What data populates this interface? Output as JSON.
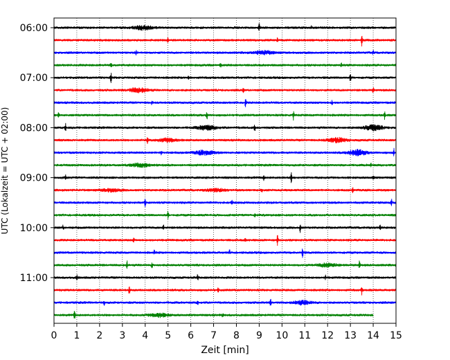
{
  "chart_data": {
    "type": "line",
    "title": "",
    "xlabel": "Zeit  [min]",
    "ylabel": "UTC (Lokalzeit = UTC + 02:00)",
    "xlim": [
      0,
      15
    ],
    "x_ticks": [
      "0",
      "1",
      "2",
      "3",
      "4",
      "5",
      "6",
      "7",
      "8",
      "9",
      "10",
      "11",
      "12",
      "13",
      "14",
      "15"
    ],
    "y_ticks": [
      {
        "label": "06:00",
        "row": 0
      },
      {
        "label": "07:00",
        "row": 4
      },
      {
        "label": "08:00",
        "row": 8
      },
      {
        "label": "09:00",
        "row": 12
      },
      {
        "label": "10:00",
        "row": 16
      },
      {
        "label": "11:00",
        "row": 20
      }
    ],
    "grid": {
      "vertical": true,
      "style": "dotted"
    },
    "trace_colors": [
      "#000000",
      "#ff0000",
      "#0000ff",
      "#008000"
    ],
    "traces": [
      {
        "start": "06:00",
        "end_min": 15,
        "events": [
          {
            "t": 3.9,
            "amp": 5,
            "type": "burst"
          },
          {
            "t": 9.0,
            "amp": 6,
            "type": "spike"
          },
          {
            "t": 11.3,
            "amp": 3,
            "type": "spike"
          }
        ]
      },
      {
        "start": "06:15",
        "end_min": 15,
        "events": [
          {
            "t": 5.0,
            "amp": 3,
            "type": "spike"
          },
          {
            "t": 9.8,
            "amp": 3,
            "type": "spike"
          },
          {
            "t": 13.5,
            "amp": 8,
            "type": "spike"
          }
        ]
      },
      {
        "start": "06:30",
        "end_min": 15,
        "events": [
          {
            "t": 3.6,
            "amp": 3,
            "type": "spike"
          },
          {
            "t": 9.2,
            "amp": 4,
            "type": "burst"
          },
          {
            "t": 14.0,
            "amp": 3,
            "type": "spike"
          }
        ]
      },
      {
        "start": "06:45",
        "end_min": 15,
        "events": [
          {
            "t": 2.5,
            "amp": 3,
            "type": "spike"
          },
          {
            "t": 7.3,
            "amp": 3,
            "type": "spike"
          },
          {
            "t": 12.6,
            "amp": 3,
            "type": "spike"
          }
        ]
      },
      {
        "start": "07:00",
        "end_min": 15,
        "events": [
          {
            "t": 2.5,
            "amp": 7,
            "type": "spike"
          },
          {
            "t": 5.9,
            "amp": 3,
            "type": "spike"
          },
          {
            "t": 13.0,
            "amp": 6,
            "type": "spike"
          }
        ]
      },
      {
        "start": "07:15",
        "end_min": 15,
        "events": [
          {
            "t": 3.7,
            "amp": 5,
            "type": "burst"
          },
          {
            "t": 8.3,
            "amp": 3,
            "type": "spike"
          },
          {
            "t": 14.0,
            "amp": 4,
            "type": "spike"
          }
        ]
      },
      {
        "start": "07:30",
        "end_min": 15,
        "events": [
          {
            "t": 4.3,
            "amp": 3,
            "type": "spike"
          },
          {
            "t": 8.4,
            "amp": 6,
            "type": "spike"
          },
          {
            "t": 12.2,
            "amp": 3,
            "type": "spike"
          }
        ]
      },
      {
        "start": "07:45",
        "end_min": 15,
        "events": [
          {
            "t": 0.2,
            "amp": 4,
            "type": "spike"
          },
          {
            "t": 6.7,
            "amp": 8,
            "type": "spike"
          },
          {
            "t": 10.5,
            "amp": 7,
            "type": "spike"
          },
          {
            "t": 14.5,
            "amp": 6,
            "type": "spike"
          }
        ]
      },
      {
        "start": "08:00",
        "end_min": 15,
        "events": [
          {
            "t": 0.5,
            "amp": 6,
            "type": "spike"
          },
          {
            "t": 6.7,
            "amp": 5,
            "type": "burst"
          },
          {
            "t": 8.8,
            "amp": 5,
            "type": "spike"
          },
          {
            "t": 14.0,
            "amp": 6,
            "type": "burst"
          }
        ]
      },
      {
        "start": "08:15",
        "end_min": 15,
        "events": [
          {
            "t": 4.1,
            "amp": 8,
            "type": "spike"
          },
          {
            "t": 5.0,
            "amp": 4,
            "type": "burst"
          },
          {
            "t": 12.4,
            "amp": 5,
            "type": "burst"
          }
        ]
      },
      {
        "start": "08:30",
        "end_min": 15,
        "events": [
          {
            "t": 4.7,
            "amp": 3,
            "type": "spike"
          },
          {
            "t": 6.6,
            "amp": 5,
            "type": "burst"
          },
          {
            "t": 13.3,
            "amp": 6,
            "type": "burst"
          },
          {
            "t": 14.9,
            "amp": 6,
            "type": "spike"
          }
        ]
      },
      {
        "start": "08:45",
        "end_min": 15,
        "events": [
          {
            "t": 3.8,
            "amp": 4,
            "type": "burst"
          },
          {
            "t": 13.9,
            "amp": 3,
            "type": "spike"
          }
        ]
      },
      {
        "start": "09:00",
        "end_min": 15,
        "events": [
          {
            "t": 0.5,
            "amp": 4,
            "type": "spike"
          },
          {
            "t": 9.2,
            "amp": 4,
            "type": "spike"
          },
          {
            "t": 10.4,
            "amp": 8,
            "type": "spike"
          },
          {
            "t": 14.0,
            "amp": 3,
            "type": "spike"
          }
        ]
      },
      {
        "start": "09:15",
        "end_min": 15,
        "events": [
          {
            "t": 2.5,
            "amp": 3,
            "type": "burst"
          },
          {
            "t": 7.1,
            "amp": 3,
            "type": "burst"
          },
          {
            "t": 9.1,
            "amp": 3,
            "type": "spike"
          },
          {
            "t": 13.1,
            "amp": 3,
            "type": "spike"
          }
        ]
      },
      {
        "start": "09:30",
        "end_min": 15,
        "events": [
          {
            "t": 4.0,
            "amp": 6,
            "type": "spike"
          },
          {
            "t": 7.8,
            "amp": 3,
            "type": "spike"
          },
          {
            "t": 14.8,
            "amp": 6,
            "type": "spike"
          }
        ]
      },
      {
        "start": "09:45",
        "end_min": 15,
        "events": [
          {
            "t": 5.0,
            "amp": 6,
            "type": "spike"
          },
          {
            "t": 8.8,
            "amp": 3,
            "type": "spike"
          }
        ]
      },
      {
        "start": "10:00",
        "end_min": 15,
        "events": [
          {
            "t": 0.4,
            "amp": 3,
            "type": "spike"
          },
          {
            "t": 4.8,
            "amp": 4,
            "type": "spike"
          },
          {
            "t": 10.8,
            "amp": 7,
            "type": "spike"
          },
          {
            "t": 14.3,
            "amp": 4,
            "type": "spike"
          }
        ]
      },
      {
        "start": "10:15",
        "end_min": 15,
        "events": [
          {
            "t": 3.5,
            "amp": 3,
            "type": "spike"
          },
          {
            "t": 8.4,
            "amp": 3,
            "type": "spike"
          },
          {
            "t": 9.8,
            "amp": 8,
            "type": "spike"
          }
        ]
      },
      {
        "start": "10:30",
        "end_min": 15,
        "events": [
          {
            "t": 4.4,
            "amp": 3,
            "type": "spike"
          },
          {
            "t": 7.7,
            "amp": 3,
            "type": "spike"
          },
          {
            "t": 10.9,
            "amp": 9,
            "type": "spike"
          }
        ]
      },
      {
        "start": "10:45",
        "end_min": 15,
        "events": [
          {
            "t": 3.2,
            "amp": 6,
            "type": "spike"
          },
          {
            "t": 4.3,
            "amp": 4,
            "type": "spike"
          },
          {
            "t": 12.0,
            "amp": 4,
            "type": "burst"
          },
          {
            "t": 13.4,
            "amp": 7,
            "type": "spike"
          }
        ]
      },
      {
        "start": "11:00",
        "end_min": 15,
        "events": [
          {
            "t": 1.0,
            "amp": 4,
            "type": "spike"
          },
          {
            "t": 6.3,
            "amp": 4,
            "type": "spike"
          },
          {
            "t": 11.9,
            "amp": 3,
            "type": "spike"
          }
        ]
      },
      {
        "start": "11:15",
        "end_min": 15,
        "events": [
          {
            "t": 3.3,
            "amp": 6,
            "type": "spike"
          },
          {
            "t": 7.2,
            "amp": 3,
            "type": "spike"
          },
          {
            "t": 13.5,
            "amp": 6,
            "type": "spike"
          }
        ]
      },
      {
        "start": "11:30",
        "end_min": 15,
        "events": [
          {
            "t": 2.2,
            "amp": 3,
            "type": "spike"
          },
          {
            "t": 6.3,
            "amp": 3,
            "type": "spike"
          },
          {
            "t": 9.5,
            "amp": 5,
            "type": "spike"
          },
          {
            "t": 10.9,
            "amp": 4,
            "type": "burst"
          }
        ]
      },
      {
        "start": "11:45",
        "end_min": 14,
        "events": [
          {
            "t": 0.9,
            "amp": 7,
            "type": "spike"
          },
          {
            "t": 4.6,
            "amp": 4,
            "type": "burst"
          },
          {
            "t": 7.4,
            "amp": 3,
            "type": "spike"
          }
        ]
      }
    ]
  }
}
